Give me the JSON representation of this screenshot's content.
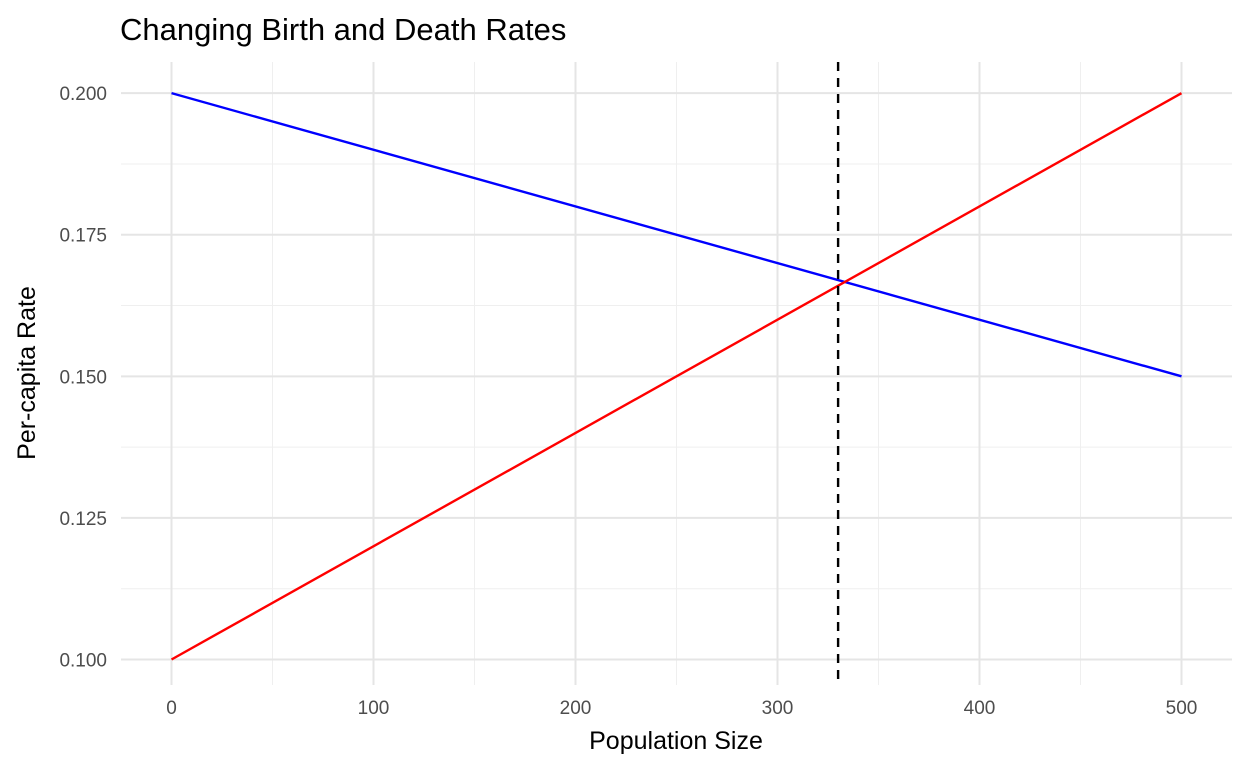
{
  "chart_data": {
    "type": "line",
    "title": "Changing Birth and Death Rates",
    "xlabel": "Population Size",
    "ylabel": "Per-capita Rate",
    "xlim": [
      -25,
      525
    ],
    "ylim": [
      0.0955,
      0.2055
    ],
    "x_ticks": [
      0,
      100,
      200,
      300,
      400,
      500
    ],
    "x_tick_labels": [
      "0",
      "100",
      "200",
      "300",
      "400",
      "500"
    ],
    "x_minor_ticks": [
      50,
      150,
      250,
      350,
      450
    ],
    "y_ticks": [
      0.1,
      0.125,
      0.15,
      0.175,
      0.2
    ],
    "y_tick_labels": [
      "0.100",
      "0.125",
      "0.150",
      "0.175",
      "0.200"
    ],
    "y_minor_ticks": [
      0.1125,
      0.1375,
      0.1625,
      0.1875
    ],
    "grid": true,
    "legend": "none",
    "series": [
      {
        "x": [
          0,
          500
        ],
        "values": [
          0.2,
          0.15
        ],
        "color": "#0000ff"
      },
      {
        "x": [
          0,
          500
        ],
        "values": [
          0.1,
          0.2
        ],
        "color": "#ff0000"
      }
    ],
    "vline": {
      "x": 330,
      "color": "#000000",
      "style": "dashed"
    }
  }
}
